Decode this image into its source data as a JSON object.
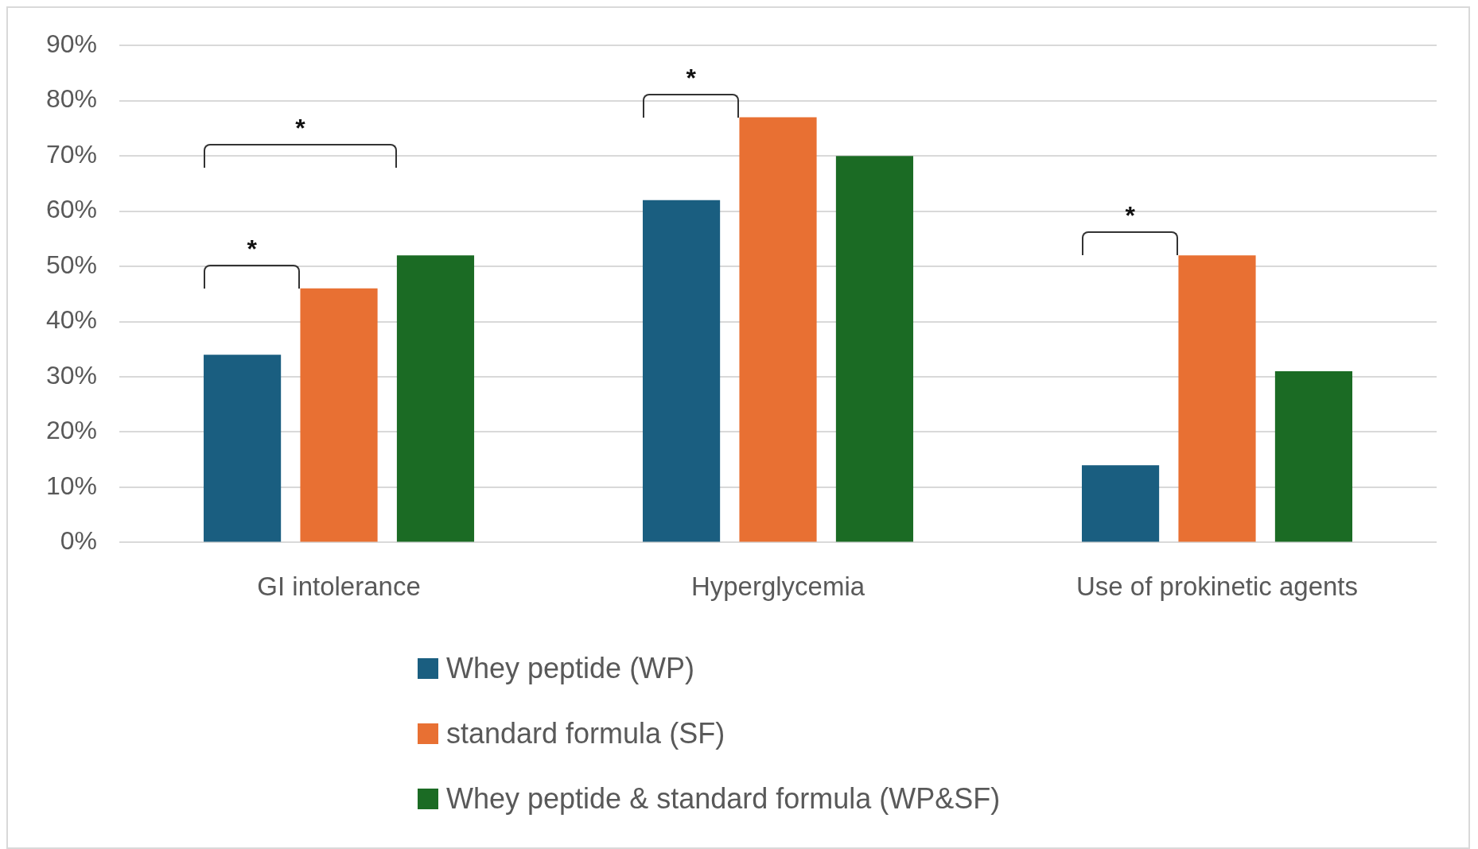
{
  "chart_data": {
    "type": "bar",
    "categories": [
      "GI intolerance",
      "Hyperglycemia",
      "Use of prokinetic agents"
    ],
    "series": [
      {
        "name": "Whey peptide (WP)",
        "color": "#1a5e80",
        "values": [
          34,
          62,
          14
        ]
      },
      {
        "name": "standard formula (SF)",
        "color": "#e87033",
        "values": [
          46,
          77,
          52
        ]
      },
      {
        "name": "Whey peptide & standard formula (WP&SF)",
        "color": "#1b6b24",
        "values": [
          52,
          70,
          31
        ]
      }
    ],
    "ylim": [
      0,
      90
    ],
    "yticks": [
      {
        "value": 0,
        "label": "0%"
      },
      {
        "value": 10,
        "label": "10%"
      },
      {
        "value": 20,
        "label": "20%"
      },
      {
        "value": 30,
        "label": "30%"
      },
      {
        "value": 40,
        "label": "40%"
      },
      {
        "value": 50,
        "label": "50%"
      },
      {
        "value": 60,
        "label": "60%"
      },
      {
        "value": 70,
        "label": "70%"
      },
      {
        "value": 80,
        "label": "80%"
      },
      {
        "value": 90,
        "label": "90%"
      }
    ],
    "grid": "y",
    "legend": "bottom",
    "annotations": [
      "*",
      "*",
      "*",
      "*"
    ]
  }
}
